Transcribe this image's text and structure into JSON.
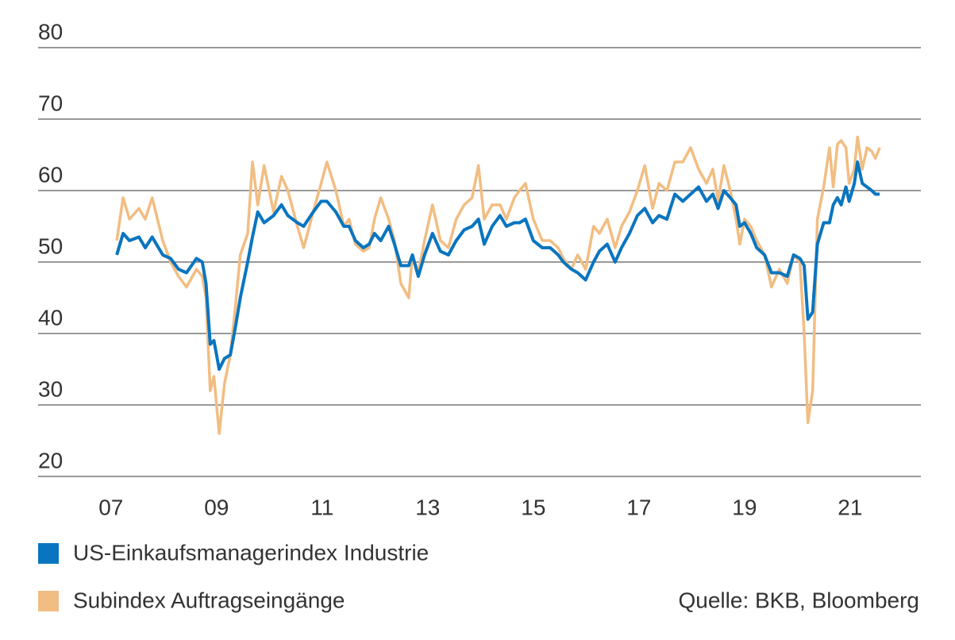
{
  "chart_data": {
    "type": "line",
    "source": "Quelle: BKB, Bloomberg",
    "x": [
      2007.11,
      2007.23,
      2007.35,
      2007.53,
      2007.65,
      2007.78,
      2007.98,
      2008.13,
      2008.28,
      2008.43,
      2008.62,
      2008.73,
      2008.8,
      2008.88,
      2008.95,
      2009.05,
      2009.15,
      2009.26,
      2009.36,
      2009.45,
      2009.59,
      2009.68,
      2009.78,
      2009.9,
      2010.08,
      2010.23,
      2010.35,
      2010.53,
      2010.65,
      2010.83,
      2010.98,
      2011.09,
      2011.26,
      2011.41,
      2011.51,
      2011.63,
      2011.78,
      2011.89,
      2011.99,
      2012.11,
      2012.26,
      2012.37,
      2012.49,
      2012.64,
      2012.71,
      2012.82,
      2012.94,
      2013.09,
      2013.24,
      2013.39,
      2013.54,
      2013.69,
      2013.84,
      2013.96,
      2014.07,
      2014.22,
      2014.37,
      2014.49,
      2014.64,
      2014.74,
      2014.85,
      2015.0,
      2015.17,
      2015.32,
      2015.47,
      2015.57,
      2015.72,
      2015.84,
      2015.99,
      2016.14,
      2016.25,
      2016.4,
      2016.55,
      2016.67,
      2016.82,
      2016.97,
      2017.11,
      2017.26,
      2017.38,
      2017.53,
      2017.68,
      2017.83,
      2017.98,
      2018.13,
      2018.28,
      2018.4,
      2018.5,
      2018.61,
      2018.73,
      2018.84,
      2018.91,
      2019.0,
      2019.12,
      2019.23,
      2019.38,
      2019.51,
      2019.66,
      2019.81,
      2019.93,
      2020.05,
      2020.13,
      2020.2,
      2020.29,
      2020.38,
      2020.5,
      2020.61,
      2020.68,
      2020.76,
      2020.83,
      2020.92,
      2020.98,
      2021.08,
      2021.14,
      2021.23,
      2021.32,
      2021.41,
      2021.48,
      2021.56
    ],
    "series": [
      {
        "name": "Subindex Auftragseingänge",
        "color": "#f2bd82",
        "values": [
          53,
          59,
          56,
          57.5,
          56,
          59,
          53,
          50,
          48,
          46.5,
          49,
          48,
          45,
          32,
          34,
          26,
          33,
          37,
          44,
          51,
          54,
          64,
          58,
          63.5,
          57,
          62,
          60,
          55,
          52,
          57,
          61,
          64,
          60,
          55,
          56,
          52.5,
          51.5,
          52,
          56,
          59,
          56,
          53,
          47,
          45,
          51,
          48.5,
          53,
          58,
          53,
          52,
          56,
          58,
          59,
          63.5,
          56,
          58,
          58,
          56,
          59,
          60,
          61,
          56,
          53,
          53,
          52,
          50.5,
          49,
          51,
          49,
          55,
          54,
          56,
          52,
          55,
          57,
          60,
          63.5,
          57.5,
          61,
          60,
          64,
          64,
          66,
          63,
          61,
          63,
          58.5,
          63.5,
          60,
          56,
          52.5,
          56,
          55,
          53,
          51,
          46.5,
          49,
          47,
          51,
          50,
          40,
          27.5,
          32,
          56,
          60.5,
          66,
          60.5,
          66.5,
          67,
          66,
          61,
          63,
          67.5,
          63,
          66,
          65.5,
          64.5,
          66
        ]
      },
      {
        "name": "US-Einkaufsmanagerindex Industrie",
        "color": "#0a75bf",
        "values": [
          51,
          54,
          53,
          53.5,
          52,
          53.5,
          51,
          50.5,
          49,
          48.5,
          50.5,
          50,
          47,
          38.5,
          39,
          35,
          36.5,
          37,
          41,
          45,
          50,
          53.5,
          57,
          55.5,
          56.5,
          58,
          56.5,
          55.5,
          55,
          57,
          58.5,
          58.5,
          57,
          55,
          55,
          53,
          52,
          52.5,
          54,
          53,
          55,
          52.5,
          49.5,
          49.5,
          51,
          48,
          51,
          54,
          51.5,
          51,
          53,
          54.5,
          55,
          56,
          52.5,
          55,
          56.5,
          55,
          55.5,
          55.5,
          56,
          53,
          52,
          52,
          51,
          50,
          49,
          48.5,
          47.5,
          50,
          51.5,
          52.5,
          50,
          52,
          54,
          56.5,
          57.5,
          55.5,
          56.5,
          56,
          59.5,
          58.5,
          59.5,
          60.5,
          58.5,
          59.5,
          57.5,
          60,
          59,
          58,
          55,
          55.5,
          54,
          52,
          51,
          48.5,
          48.5,
          48,
          51,
          50.5,
          49.5,
          42,
          43,
          52.5,
          55.5,
          55.5,
          58,
          59,
          58,
          60.5,
          58.5,
          61,
          64,
          61,
          60.5,
          60,
          59.5,
          59.5
        ]
      }
    ],
    "xlim": [
      2005.62,
      2022.34
    ],
    "xticks": [
      {
        "value": 2007,
        "label": "07"
      },
      {
        "value": 2009,
        "label": "09"
      },
      {
        "value": 2011,
        "label": "11"
      },
      {
        "value": 2013,
        "label": "13"
      },
      {
        "value": 2015,
        "label": "15"
      },
      {
        "value": 2017,
        "label": "17"
      },
      {
        "value": 2019,
        "label": "19"
      },
      {
        "value": 2021,
        "label": "21"
      }
    ],
    "ylim": [
      20,
      80
    ],
    "yticks": [
      20,
      30,
      40,
      50,
      60,
      70,
      80
    ],
    "grid": true
  }
}
